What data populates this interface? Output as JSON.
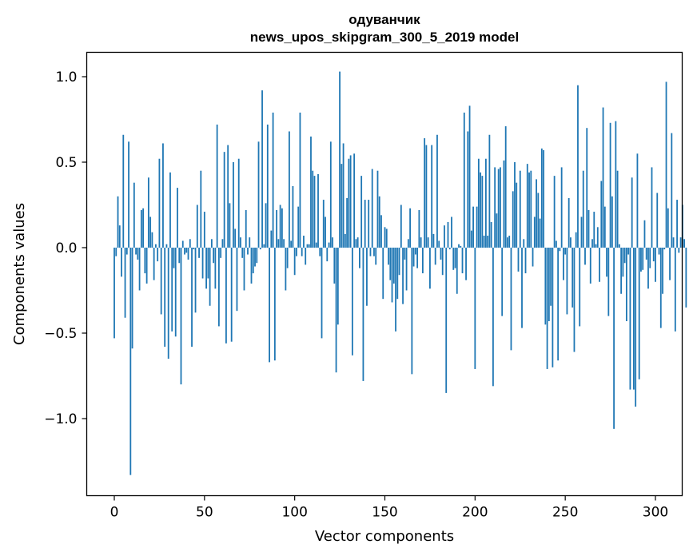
{
  "chart_data": {
    "type": "bar",
    "title": [
      "одуванчик",
      "news_upos_skipgram_300_5_2019 model"
    ],
    "xlabel": "Vector components",
    "ylabel": "Components values",
    "xlim": [
      -15,
      315
    ],
    "ylim": [
      -1.45,
      1.15
    ],
    "xticks": [
      {
        "value": 0,
        "label": "0"
      },
      {
        "value": 50,
        "label": "50"
      },
      {
        "value": 100,
        "label": "100"
      },
      {
        "value": 150,
        "label": "150"
      },
      {
        "value": 200,
        "label": "200"
      },
      {
        "value": 250,
        "label": "250"
      },
      {
        "value": 300,
        "label": "300"
      }
    ],
    "yticks": [
      {
        "value": 1.0,
        "label": "1.0"
      },
      {
        "value": 0.5,
        "label": "0.5"
      },
      {
        "value": 0.0,
        "label": "0.0"
      },
      {
        "value": -0.5,
        "label": "−0.5"
      },
      {
        "value": -1.0,
        "label": "−1.0"
      }
    ],
    "bar_color": "#1f77b4",
    "values": [
      -0.53,
      -0.05,
      0.3,
      0.13,
      -0.17,
      0.66,
      -0.41,
      -0.04,
      0.62,
      -1.33,
      -0.59,
      0.38,
      -0.04,
      -0.07,
      -0.25,
      0.22,
      0.23,
      -0.15,
      -0.21,
      0.41,
      0.18,
      0.09,
      -0.19,
      0.02,
      -0.08,
      0.52,
      -0.39,
      0.61,
      -0.58,
      0.02,
      -0.65,
      0.44,
      -0.49,
      -0.12,
      -0.52,
      0.35,
      -0.09,
      -0.8,
      0.04,
      -0.04,
      -0.03,
      -0.07,
      0.05,
      -0.58,
      -0.01,
      -0.38,
      0.25,
      -0.06,
      0.45,
      -0.18,
      0.21,
      -0.24,
      -0.18,
      -0.34,
      0.05,
      -0.09,
      -0.24,
      0.72,
      -0.46,
      -0.06,
      0.05,
      0.56,
      -0.56,
      0.6,
      0.26,
      -0.55,
      0.5,
      0.11,
      -0.37,
      0.52,
      0.06,
      -0.06,
      -0.25,
      0.22,
      -0.04,
      0.06,
      -0.21,
      -0.15,
      -0.11,
      -0.09,
      0.62,
      -0.01,
      0.92,
      0.02,
      0.26,
      0.72,
      -0.67,
      0.1,
      0.79,
      -0.66,
      0.22,
      0.05,
      0.25,
      0.23,
      0.05,
      -0.25,
      -0.12,
      0.68,
      0.04,
      0.36,
      -0.16,
      -0.05,
      0.24,
      0.79,
      -0.05,
      0.07,
      -0.1,
      0.02,
      0.02,
      0.65,
      0.45,
      0.42,
      0.03,
      0.43,
      -0.05,
      -0.53,
      0.28,
      0.18,
      -0.08,
      0.03,
      0.62,
      0.06,
      -0.21,
      -0.73,
      -0.45,
      1.03,
      0.49,
      0.61,
      0.08,
      0.29,
      0.52,
      0.54,
      -0.63,
      0.55,
      0.05,
      0.06,
      -0.12,
      0.42,
      -0.78,
      0.28,
      -0.34,
      0.28,
      -0.05,
      0.46,
      -0.05,
      -0.1,
      0.45,
      0.3,
      0.19,
      -0.3,
      0.12,
      0.11,
      -0.1,
      -0.19,
      -0.32,
      -0.21,
      -0.49,
      -0.3,
      -0.16,
      0.25,
      -0.33,
      -0.07,
      -0.25,
      0.05,
      0.23,
      -0.74,
      -0.11,
      -0.04,
      -0.12,
      0.22,
      0.06,
      -0.15,
      0.64,
      0.6,
      0.06,
      -0.24,
      0.6,
      0.08,
      -0.1,
      0.66,
      0.04,
      -0.07,
      -0.16,
      0.13,
      -0.85,
      0.15,
      -0.01,
      0.18,
      -0.13,
      -0.12,
      -0.27,
      0.02,
      0.01,
      -0.15,
      0.79,
      -0.19,
      0.68,
      0.83,
      0.1,
      0.24,
      -0.71,
      0.24,
      0.52,
      0.44,
      0.42,
      0.07,
      0.52,
      0.07,
      0.66,
      0.15,
      -0.81,
      0.47,
      0.2,
      0.46,
      0.47,
      -0.4,
      0.51,
      0.71,
      0.06,
      0.07,
      -0.6,
      0.33,
      0.5,
      0.38,
      -0.14,
      0.45,
      -0.47,
      0.05,
      -0.15,
      0.49,
      0.44,
      0.45,
      -0.11,
      0.18,
      0.4,
      0.32,
      0.17,
      0.58,
      0.57,
      -0.45,
      -0.71,
      -0.43,
      -0.34,
      -0.7,
      0.42,
      0.04,
      -0.66,
      -0.02,
      0.47,
      -0.19,
      -0.04,
      -0.39,
      0.29,
      0.06,
      -0.35,
      -0.61,
      0.09,
      0.95,
      -0.46,
      0.18,
      0.45,
      -0.1,
      0.7,
      0.22,
      -0.21,
      0.05,
      0.21,
      0.02,
      0.12,
      -0.2,
      0.39,
      0.82,
      0.24,
      -0.17,
      -0.4,
      0.73,
      0.3,
      -1.06,
      0.74,
      0.45,
      0.02,
      -0.27,
      -0.17,
      -0.09,
      -0.43,
      -0.04,
      -0.83,
      0.41,
      -0.83,
      -0.93,
      0.55,
      -0.77,
      -0.14,
      -0.13,
      0.16,
      -0.07,
      -0.24,
      -0.12,
      0.47,
      -0.08,
      -0.2,
      0.32,
      -0.04,
      -0.47,
      -0.27,
      -0.01,
      0.97,
      0.23,
      -0.19,
      0.67,
      0.06,
      -0.49,
      0.28,
      -0.03,
      0.06,
      0.25,
      0.05,
      -0.35
    ]
  }
}
